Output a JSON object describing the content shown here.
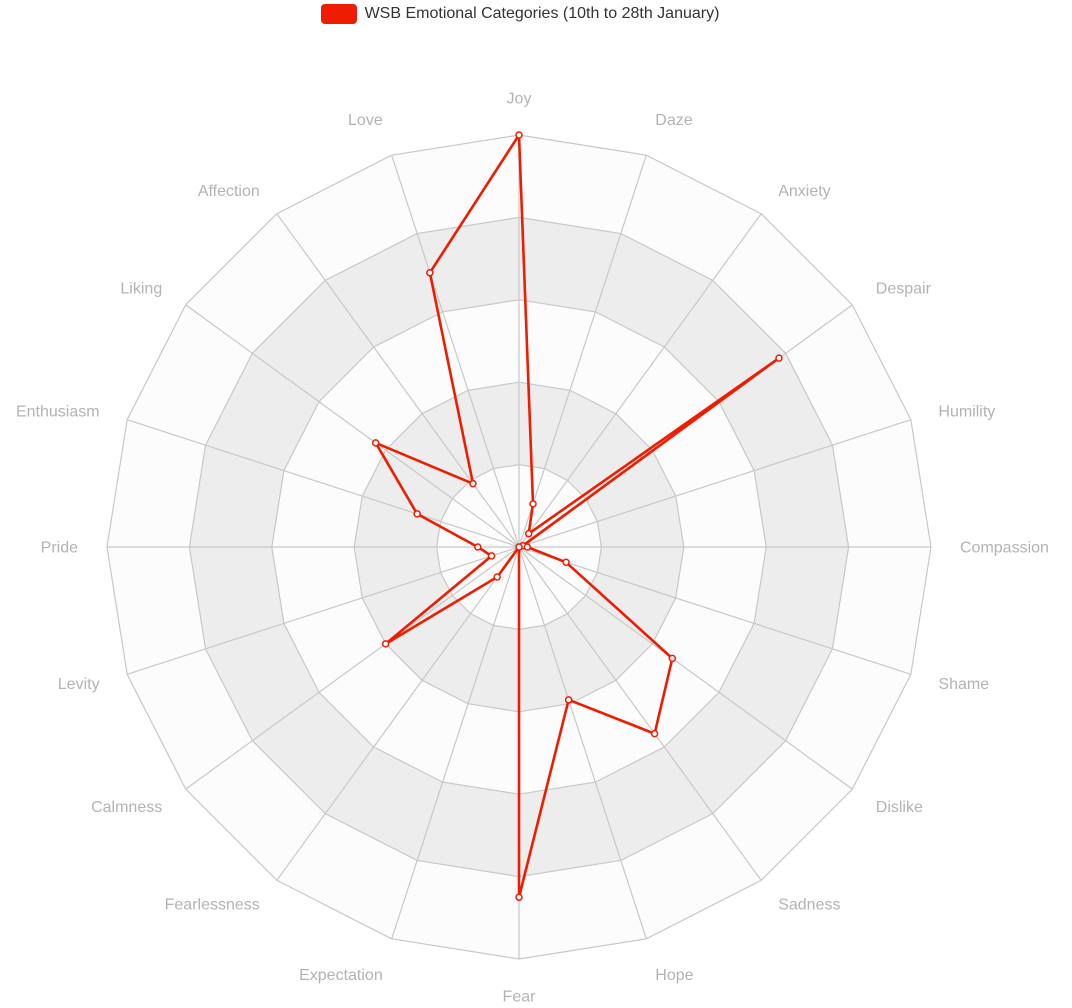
{
  "legend": {
    "label": "WSB Emotional Categories (10th to 28th January)",
    "color": "#ee1c00"
  },
  "colors": {
    "series": "#ee1c00",
    "band_light": "#fcfcfc",
    "band_dark": "#ededed",
    "grid_line": "#c8c8c8",
    "axis_label": "#b3b3b3"
  },
  "chart_data": {
    "type": "radar",
    "title": "",
    "categories": [
      "Joy",
      "Daze",
      "Anxiety",
      "Despair",
      "Humility",
      "Compassion",
      "Shame",
      "Dislike",
      "Sadness",
      "Hope",
      "Fear",
      "Expectation",
      "Fearlessness",
      "Calmness",
      "Levity",
      "Pride",
      "Enthusiasm",
      "Liking",
      "Affection",
      "Love"
    ],
    "series": [
      {
        "name": "WSB Emotional Categories (10th to 28th January)",
        "values": [
          1.0,
          0.11,
          0.04,
          0.78,
          0.01,
          0.02,
          0.12,
          0.46,
          0.56,
          0.39,
          0.85,
          0.0,
          0.09,
          0.4,
          0.07,
          0.1,
          0.26,
          0.43,
          0.19,
          0.7
        ]
      }
    ],
    "range": [
      0,
      1
    ],
    "rings": 5,
    "grid": true,
    "legend_position": "top"
  }
}
